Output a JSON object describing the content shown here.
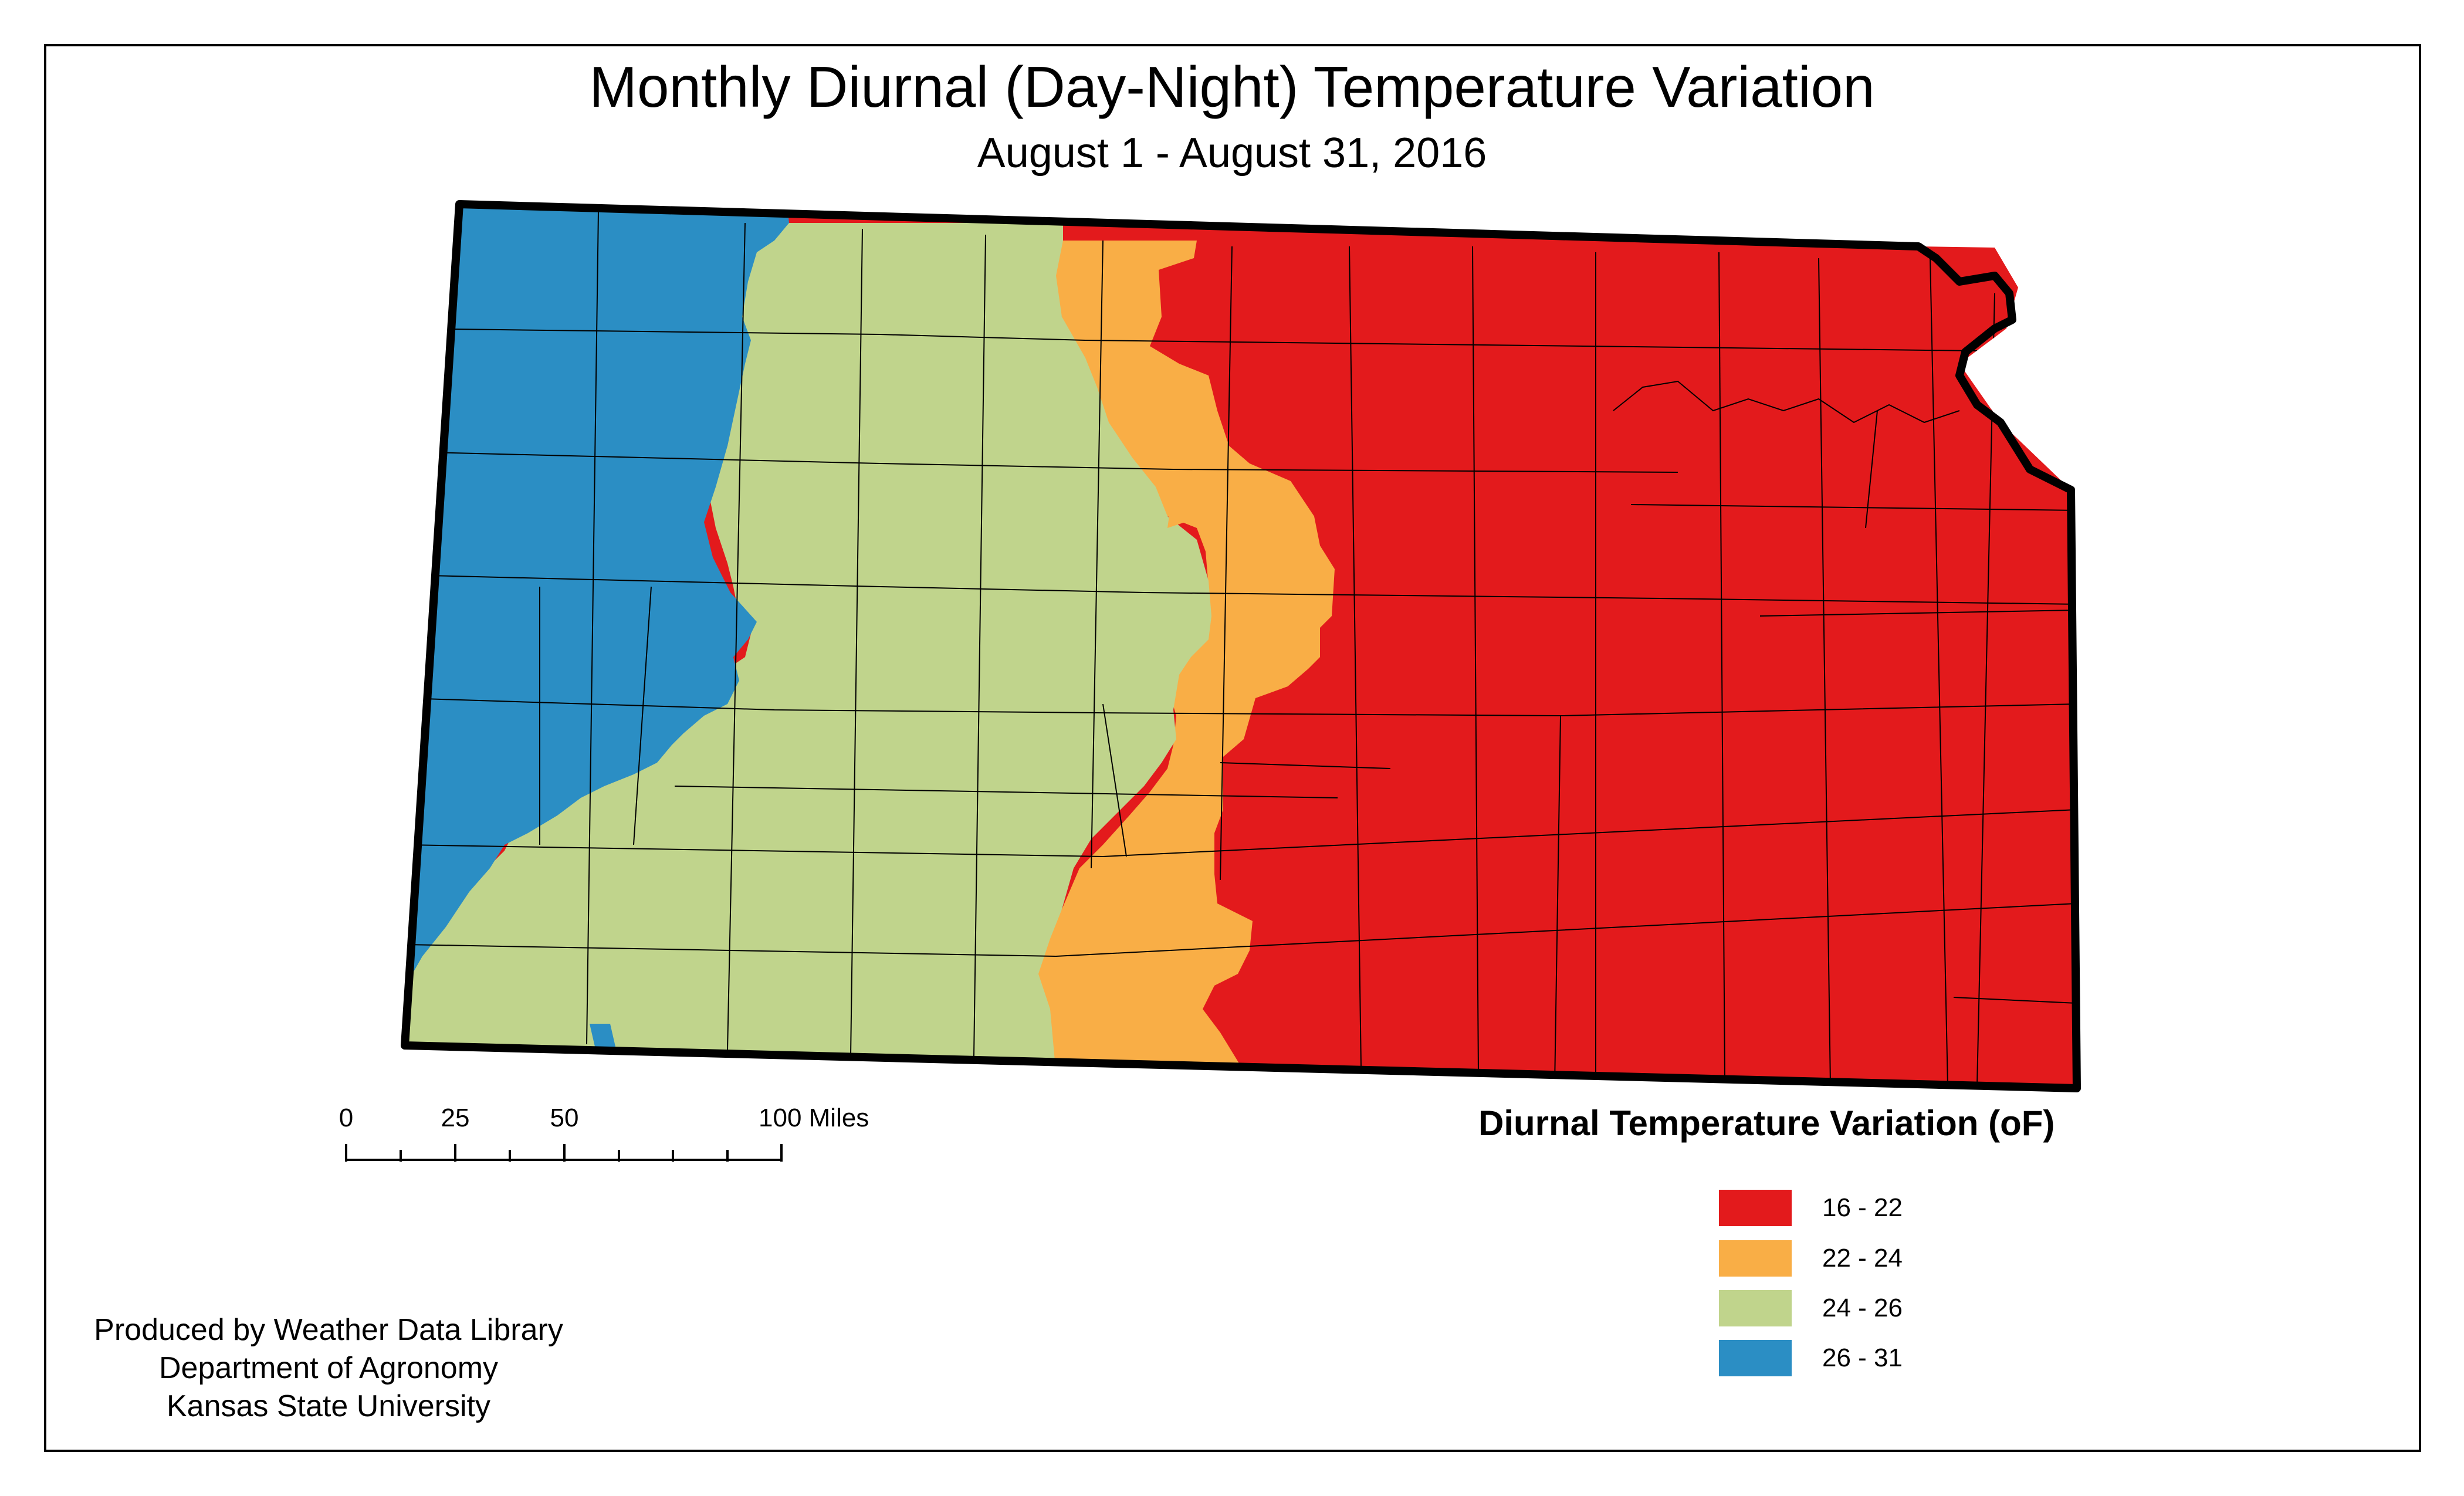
{
  "title": "Monthly Diurnal (Day-Night) Temperature Variation",
  "subtitle": "August 1 - August 31, 2016",
  "scale_bar": {
    "labels": [
      "0",
      "25",
      "50",
      "100 Miles"
    ]
  },
  "legend": {
    "title": "Diurnal Temperature Variation (oF)",
    "items": [
      {
        "label": "16 - 22",
        "color": "#e31a1c"
      },
      {
        "label": "22 - 24",
        "color": "#f9ae46"
      },
      {
        "label": "24 - 26",
        "color": "#c0d48c"
      },
      {
        "label": "26 - 31",
        "color": "#2b8ec4"
      }
    ]
  },
  "credits": {
    "line1": "Produced by Weather Data Library",
    "line2": "Department of Agronomy",
    "line3": "Kansas State University"
  }
}
